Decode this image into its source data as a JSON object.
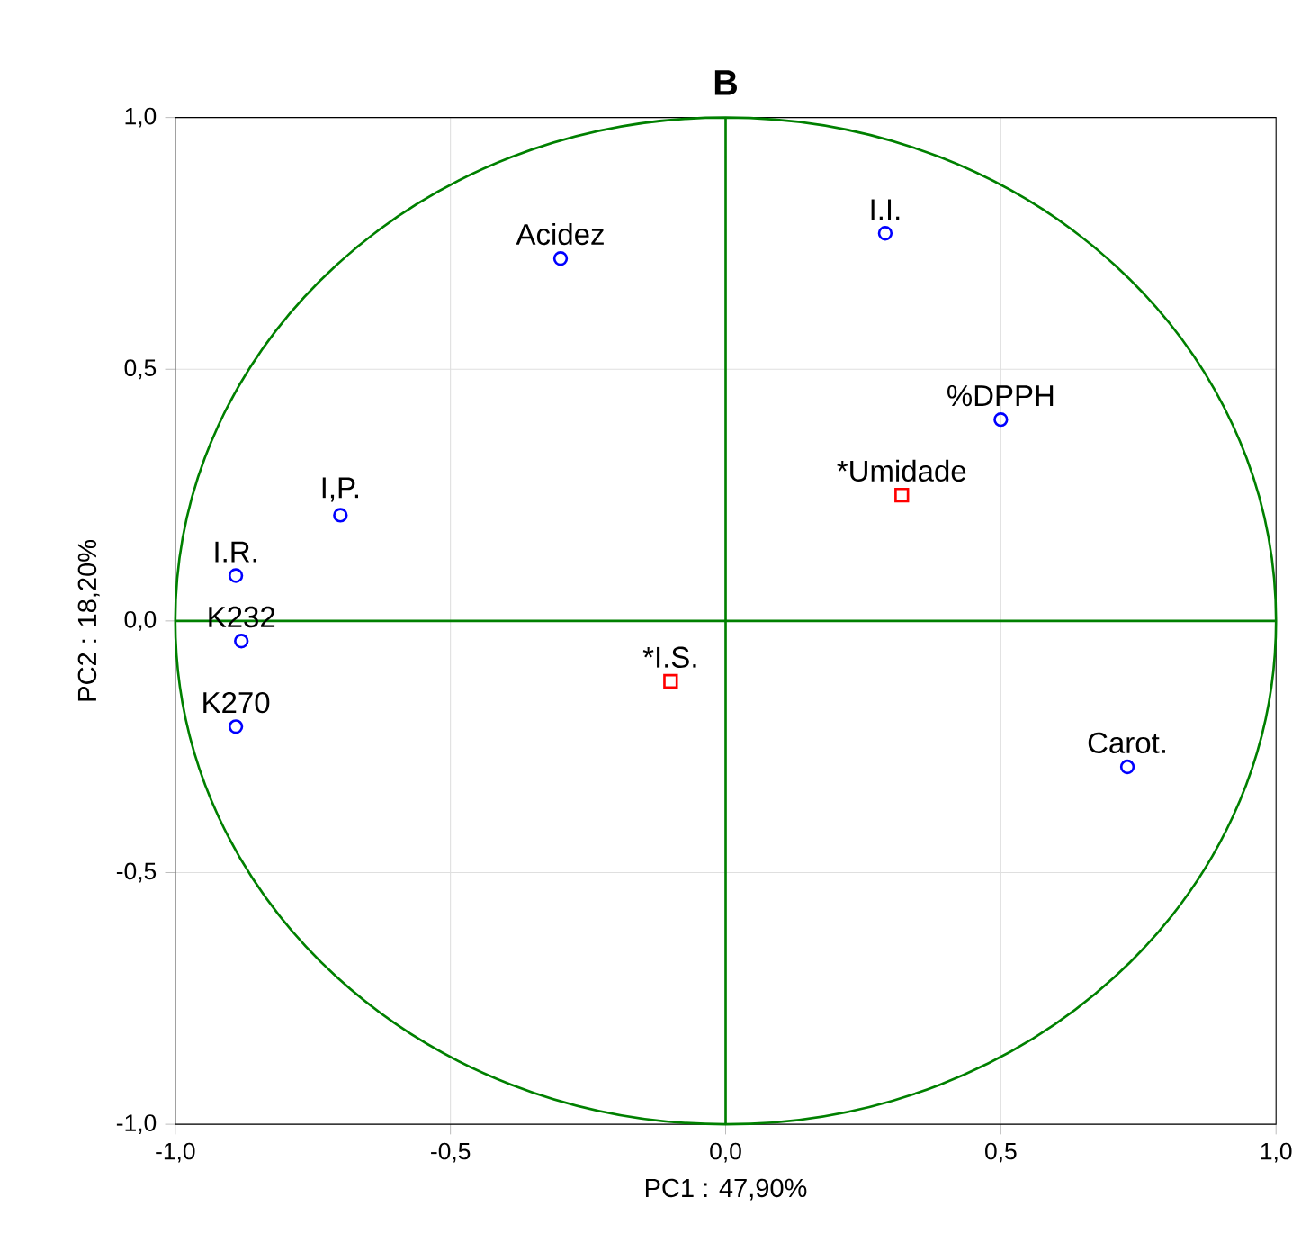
{
  "chart_data": {
    "type": "scatter",
    "title": "B",
    "xlabel": "PC1 : 47,90%",
    "ylabel": "PC2 : 18,20%",
    "xlim": [
      -1,
      1
    ],
    "ylim": [
      -1,
      1
    ],
    "xticks": [
      {
        "value": -1,
        "label": "-1,0"
      },
      {
        "value": -0.5,
        "label": "-0,5"
      },
      {
        "value": 0,
        "label": "0,0"
      },
      {
        "value": 0.5,
        "label": "0,5"
      },
      {
        "value": 1,
        "label": "1,0"
      }
    ],
    "yticks": [
      {
        "value": -1,
        "label": "-1,0"
      },
      {
        "value": -0.5,
        "label": "-0,5"
      },
      {
        "value": 0,
        "label": "0,0"
      },
      {
        "value": 0.5,
        "label": "0,5"
      },
      {
        "value": 1,
        "label": "1,0"
      }
    ],
    "grid": true,
    "series": [
      {
        "color": "#0000ff",
        "marker": "circle",
        "x": [
          -0.3,
          0.29,
          0.5,
          -0.7,
          -0.89,
          -0.88,
          -0.89,
          0.73
        ],
        "values": [
          0.72,
          0.77,
          0.4,
          0.21,
          0.09,
          -0.04,
          -0.21,
          -0.29
        ]
      },
      {
        "color": "#ff0000",
        "marker": "square",
        "x": [
          0.32,
          -0.1
        ],
        "values": [
          0.25,
          -0.12
        ]
      }
    ],
    "annotations": [
      {
        "text": "Acidez",
        "x": -0.3,
        "y": 0.72
      },
      {
        "text": "I.I.",
        "x": 0.29,
        "y": 0.77
      },
      {
        "text": "%DPPH",
        "x": 0.5,
        "y": 0.4
      },
      {
        "text": "I,P.",
        "x": -0.7,
        "y": 0.21
      },
      {
        "text": "I.R.",
        "x": -0.89,
        "y": 0.09
      },
      {
        "text": "K232",
        "x": -0.88,
        "y": -0.04
      },
      {
        "text": "K270",
        "x": -0.89,
        "y": -0.21
      },
      {
        "text": "Carot.",
        "x": 0.73,
        "y": -0.29
      },
      {
        "text": "*Umidade",
        "x": 0.32,
        "y": 0.25
      },
      {
        "text": "*I.S.",
        "x": -0.1,
        "y": -0.12
      }
    ]
  }
}
